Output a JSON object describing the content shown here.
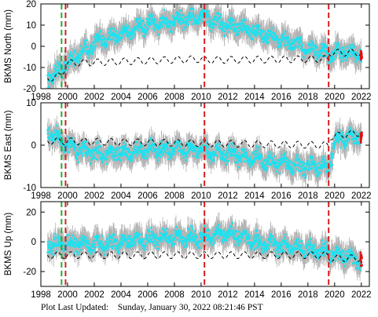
{
  "footer": {
    "label": "Plot Last Updated:",
    "timestamp": "Sunday, January 30, 2022 08:21:46 PST"
  },
  "colors": {
    "data": "#19e3f1",
    "error_bars": "#b4b4b4",
    "model": "#000000",
    "event_red": "#d42020",
    "event_green": "#1fae35",
    "recent_points": "#e01010"
  },
  "chart_data": [
    {
      "type": "scatter",
      "ylabel": "BKMS North (mm)",
      "xlim": [
        1998,
        2022.6
      ],
      "ylim": [
        -20,
        20
      ],
      "xticks": [
        1998,
        2000,
        2002,
        2004,
        2006,
        2008,
        2010,
        2012,
        2014,
        2016,
        2018,
        2020,
        2022
      ],
      "yticks": [
        -20,
        -10,
        0,
        10,
        20
      ],
      "grid": false,
      "event_lines": [
        {
          "x": 1999.55,
          "color": "green"
        },
        {
          "x": 1999.85,
          "color": "red"
        },
        {
          "x": 2010.25,
          "color": "red"
        },
        {
          "x": 2019.55,
          "color": "red"
        }
      ],
      "series": [
        {
          "style": "points with error bars",
          "x": [
            1998.5,
            1999,
            1999.5,
            2000,
            2001,
            2002,
            2003,
            2004,
            2005,
            2006,
            2007,
            2008,
            2009,
            2010,
            2010.2,
            2010.3,
            2011,
            2012,
            2013,
            2014,
            2015,
            2016,
            2017,
            2018,
            2019,
            2019.5,
            2019.6,
            2020,
            2021,
            2022
          ],
          "values": [
            -15,
            -13,
            -11,
            -8,
            -3,
            1,
            4,
            6,
            8,
            10,
            11,
            12,
            13,
            14,
            14,
            13,
            12,
            10,
            9,
            7,
            5,
            3,
            1,
            -1,
            -3,
            -4,
            -4,
            -3,
            -3,
            -4
          ]
        },
        {
          "style": "dashed model",
          "x": [
            1998.5,
            1999,
            1999.5,
            1999.9,
            2000,
            2010,
            2010.3,
            2019.5,
            2019.6,
            2022
          ],
          "values": [
            -15,
            -15,
            -13.5,
            -9,
            -8,
            -6,
            -6.5,
            -6,
            -3,
            -3
          ]
        }
      ]
    },
    {
      "type": "scatter",
      "ylabel": "BKMS East (mm)",
      "xlim": [
        1998,
        2022.6
      ],
      "ylim": [
        -10,
        10
      ],
      "xticks": [
        1998,
        2000,
        2002,
        2004,
        2006,
        2008,
        2010,
        2012,
        2014,
        2016,
        2018,
        2020,
        2022
      ],
      "yticks": [
        -10,
        0,
        10
      ],
      "grid": false,
      "event_lines": [
        {
          "x": 1999.55,
          "color": "green"
        },
        {
          "x": 1999.85,
          "color": "red"
        },
        {
          "x": 2010.25,
          "color": "red"
        },
        {
          "x": 2019.55,
          "color": "red"
        }
      ],
      "series": [
        {
          "style": "points with error bars",
          "x": [
            1998.5,
            1999,
            2000,
            2002,
            2004,
            2006,
            2008,
            2010,
            2011,
            2012,
            2014,
            2015,
            2016,
            2017,
            2018,
            2019,
            2019.5,
            2020,
            2021,
            2022
          ],
          "values": [
            3,
            2,
            0,
            -2,
            -2,
            -1,
            -1,
            -1,
            -2,
            -2,
            -3,
            -4,
            -4,
            -5,
            -5,
            -5,
            -6,
            1,
            2,
            2
          ]
        },
        {
          "style": "dashed model",
          "x": [
            1998.5,
            2019.5,
            2019.6,
            2022
          ],
          "values": [
            1,
            0,
            2,
            3
          ]
        }
      ]
    },
    {
      "type": "scatter",
      "ylabel": "BKMS Up (mm)",
      "xlim": [
        1998,
        2022.6
      ],
      "ylim": [
        -30,
        27
      ],
      "xticks": [
        1998,
        2000,
        2002,
        2004,
        2006,
        2008,
        2010,
        2012,
        2014,
        2016,
        2018,
        2020,
        2022
      ],
      "yticks": [
        -20,
        0,
        20
      ],
      "grid": false,
      "event_lines": [
        {
          "x": 1999.55,
          "color": "green"
        },
        {
          "x": 1999.85,
          "color": "red"
        },
        {
          "x": 2010.25,
          "color": "red"
        },
        {
          "x": 2019.55,
          "color": "red"
        }
      ],
      "series": [
        {
          "style": "points with error bars",
          "x": [
            1998.5,
            2000,
            2002,
            2004,
            2006,
            2008,
            2010,
            2011,
            2012,
            2013,
            2014,
            2016,
            2018,
            2019,
            2020,
            2021,
            2022
          ],
          "values": [
            -3,
            -1,
            -2,
            0,
            2,
            3,
            3,
            4,
            5,
            4,
            0,
            -3,
            -5,
            -6,
            -8,
            -10,
            -12
          ]
        },
        {
          "style": "dashed model",
          "x": [
            1998.5,
            2019.5,
            2019.6,
            2022
          ],
          "values": [
            -9,
            -9,
            -11,
            -11
          ]
        }
      ]
    }
  ]
}
